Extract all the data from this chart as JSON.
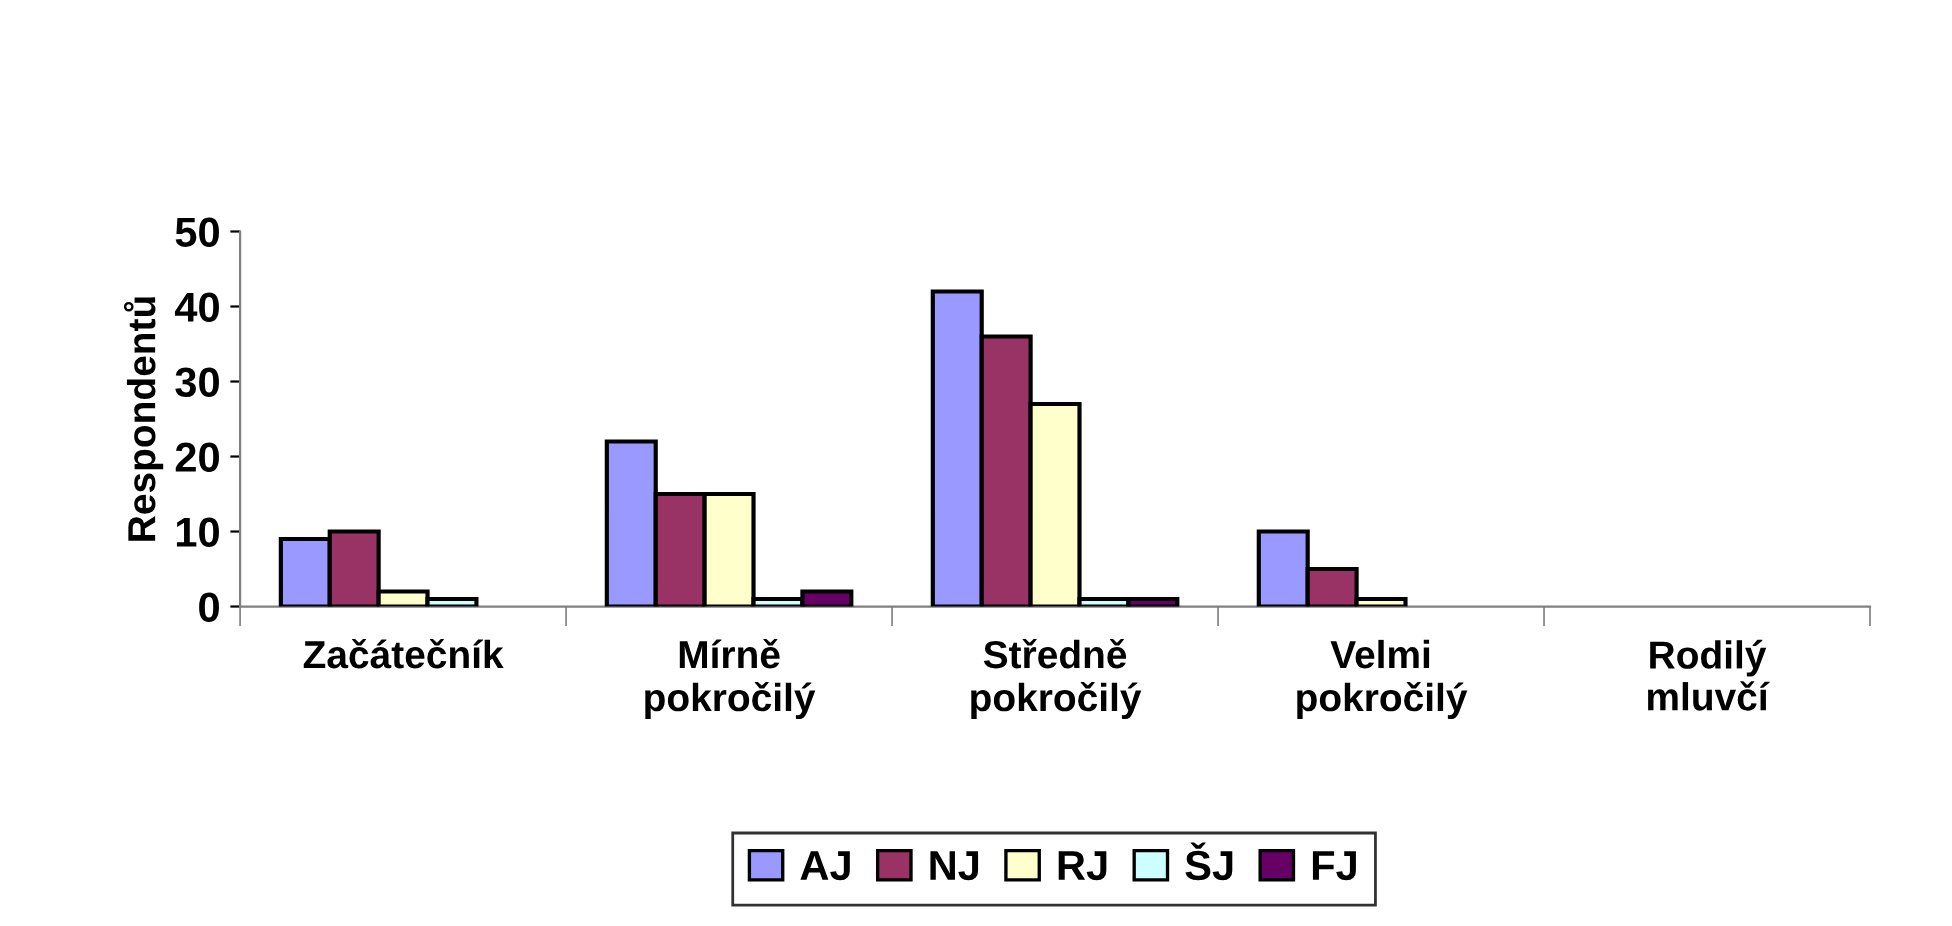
{
  "chart_data": {
    "type": "bar",
    "ylabel": "Respondentů",
    "categories": [
      "Začátečník",
      "Mírně\npokročilý",
      "Středně\npokročilý",
      "Velmi\npokročilý",
      "Rodilý\nmluvčí"
    ],
    "series": [
      {
        "name": "AJ",
        "color": "#9999ff",
        "values": [
          9,
          22,
          42,
          10,
          0
        ]
      },
      {
        "name": "NJ",
        "color": "#993366",
        "values": [
          10,
          15,
          36,
          5,
          0
        ]
      },
      {
        "name": "RJ",
        "color": "#ffffcc",
        "values": [
          2,
          15,
          27,
          1,
          0
        ]
      },
      {
        "name": "ŠJ",
        "color": "#ccffff",
        "values": [
          1,
          1,
          1,
          0,
          0
        ]
      },
      {
        "name": "FJ",
        "color": "#660066",
        "values": [
          0,
          2,
          1,
          0,
          0
        ]
      }
    ],
    "ylim": [
      0,
      50
    ],
    "yticks": [
      0,
      10,
      20,
      30,
      40,
      50
    ],
    "grid": false,
    "legend": "bottom"
  }
}
